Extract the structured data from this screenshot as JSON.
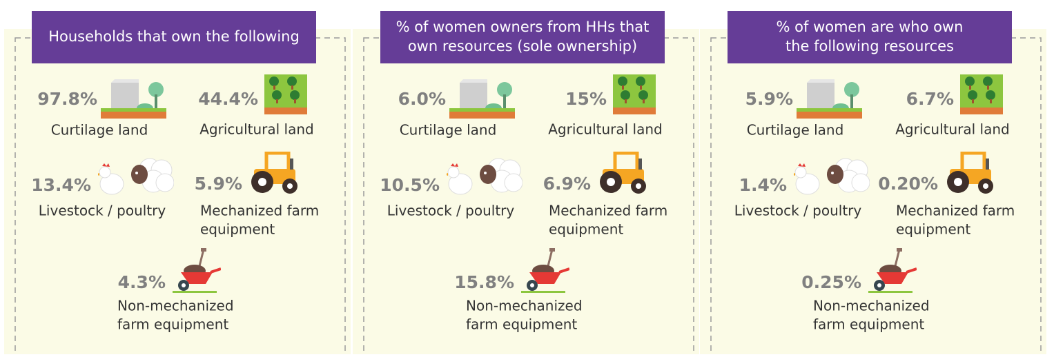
{
  "panels": [
    {
      "title": [
        "Households that own the following"
      ],
      "items": [
        {
          "value": "97.8%",
          "label": [
            "Curtilage land"
          ]
        },
        {
          "value": "44.4%",
          "label": [
            "Agricultural land"
          ]
        },
        {
          "value": "13.4%",
          "label": [
            "Livestock / poultry"
          ]
        },
        {
          "value": "5.9%",
          "label": [
            "Mechanized farm",
            "equipment"
          ]
        },
        {
          "value": "4.3%",
          "label": [
            "Non-mechanized",
            "farm equipment"
          ]
        }
      ]
    },
    {
      "title": [
        "% of women owners from HHs that",
        "own resources (sole ownership)"
      ],
      "items": [
        {
          "value": "6.0%",
          "label": [
            "Curtilage land"
          ]
        },
        {
          "value": "15%",
          "label": [
            "Agricultural land"
          ]
        },
        {
          "value": "10.5%",
          "label": [
            "Livestock / poultry"
          ]
        },
        {
          "value": "6.9%",
          "label": [
            "Mechanized farm",
            "equipment"
          ]
        },
        {
          "value": "15.8%",
          "label": [
            "Non-mechanized",
            "farm equipment"
          ]
        }
      ]
    },
    {
      "title": [
        "% of women are who own",
        "the following resources"
      ],
      "items": [
        {
          "value": "5.9%",
          "label": [
            "Curtilage land"
          ]
        },
        {
          "value": "6.7%",
          "label": [
            "Agricultural land"
          ]
        },
        {
          "value": "1.4%",
          "label": [
            "Livestock / poultry"
          ]
        },
        {
          "value": "0.20%",
          "label": [
            "Mechanized farm",
            "equipment"
          ]
        },
        {
          "value": "0.25%",
          "label": [
            "Non-mechanized",
            "farm equipment"
          ]
        }
      ]
    }
  ]
}
